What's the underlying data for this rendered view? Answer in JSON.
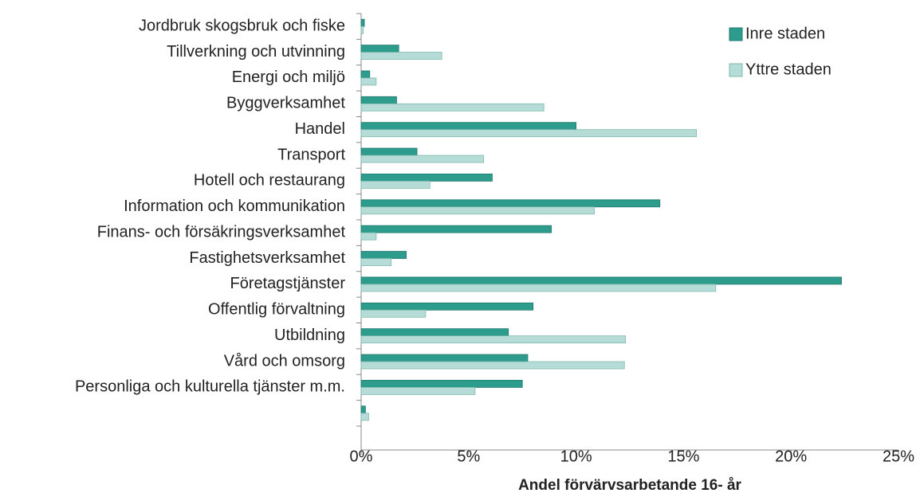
{
  "chart_data": {
    "type": "hbar",
    "xlabel": "Andel förvärvsarbetande 16- år",
    "categories": [
      "Jordbruk skogsbruk och fiske",
      "Tillverkning och utvinning",
      "Energi och miljö",
      "Byggverksamhet",
      "Handel",
      "Transport",
      "Hotell och restaurang",
      "Information och kommunikation",
      "Finans- och försäkringsverksamhet",
      "Fastighetsverksamhet",
      "Företagstjänster",
      "Offentlig förvaltning",
      "Utbildning",
      "Vård och omsorg",
      "Personliga och kulturella tjänster m.m.",
      null
    ],
    "series": [
      {
        "name": "Inre staden",
        "color": "#2e9c8c",
        "values": [
          0.15,
          1.75,
          0.4,
          1.65,
          10.0,
          2.6,
          6.1,
          13.9,
          8.85,
          2.1,
          22.35,
          8.0,
          6.85,
          7.75,
          7.5,
          0.2
        ]
      },
      {
        "name": "Yttre staden",
        "color": "#b5dcd6",
        "values": [
          0.1,
          3.75,
          0.7,
          8.5,
          15.6,
          5.7,
          3.2,
          10.85,
          0.7,
          1.4,
          16.5,
          3.0,
          12.3,
          12.25,
          5.3,
          0.35
        ]
      }
    ],
    "xlim": [
      0,
      25
    ],
    "xticks": [
      {
        "value": 0,
        "label": "0%"
      },
      {
        "value": 5,
        "label": "5%"
      },
      {
        "value": 10,
        "label": "10%"
      },
      {
        "value": 15,
        "label": "15%"
      },
      {
        "value": 20,
        "label": "20%"
      },
      {
        "value": 25,
        "label": "25%"
      }
    ],
    "legend": "upper right"
  }
}
